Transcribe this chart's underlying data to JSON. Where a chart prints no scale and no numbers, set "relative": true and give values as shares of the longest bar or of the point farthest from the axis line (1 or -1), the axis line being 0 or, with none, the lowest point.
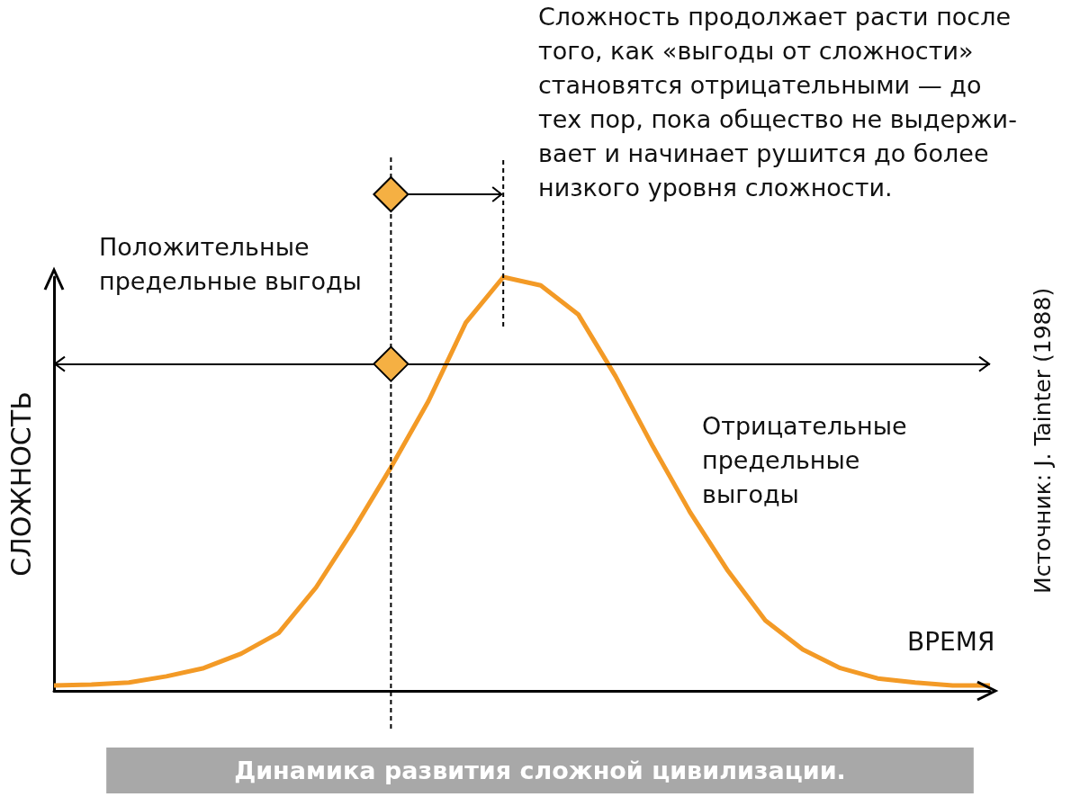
{
  "chart_data": {
    "type": "line",
    "relative": true,
    "title": "Динамика развития сложной цивилизации.",
    "xlabel": "ВРЕМЯ",
    "ylabel": "СЛОЖНОСТЬ",
    "categories": [
      null,
      null,
      null,
      null,
      null,
      null,
      null,
      null,
      null,
      null,
      null,
      null,
      null,
      null,
      null,
      null,
      null,
      null,
      null,
      null,
      null,
      null,
      null,
      null,
      null,
      null
    ],
    "series": [
      {
        "color": "#f39a26",
        "values": [
          0.013,
          0.015,
          0.02,
          0.035,
          0.055,
          0.09,
          0.14,
          0.25,
          0.39,
          0.54,
          0.7,
          0.89,
          1,
          0.98,
          0.91,
          0.76,
          0.59,
          0.43,
          0.29,
          0.17,
          0.1,
          0.055,
          0.03,
          0.02,
          0.013,
          0.013
        ]
      }
    ],
    "ref_lines": [
      {
        "axis": "y",
        "value": 0.79,
        "color": "#000000"
      }
    ],
    "annotations": [
      "Сложность продолжает расти после\nтого, как «выгоды от сложности»\nстановятся отрицательными — до\nтех пор, пока общество не выдержи-\nвает и начинает рушится до более\nнизкого уровня сложности.",
      "Положительные\nпредельные выгоды",
      "Отрицательные\nпредельные\nвыгоды",
      "Источник: J. Tainter (1988)"
    ],
    "grid": false,
    "marker": "none",
    "line_style": "solid"
  }
}
